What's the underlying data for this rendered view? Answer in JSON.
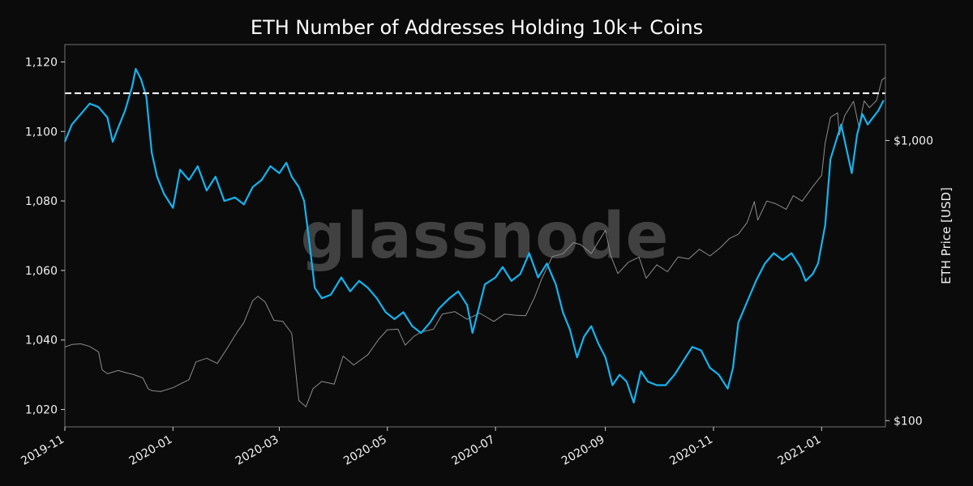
{
  "chart_data": {
    "type": "line",
    "title": "ETH Number of Addresses Holding 10k+ Coins",
    "watermark": "glassnode",
    "xlabel": "",
    "ylabel_left": "",
    "ylabel_right": "ETH Price [USD]",
    "x_range": [
      "2019-11-01",
      "2021-02-06"
    ],
    "x_ticks": [
      "2019-11",
      "2020-01",
      "2020-03",
      "2020-05",
      "2020-07",
      "2020-09",
      "2020-11",
      "2021-01"
    ],
    "y_left_range": [
      1015,
      1125
    ],
    "y_left_ticks": [
      "1,020",
      "1,040",
      "1,060",
      "1,080",
      "1,100",
      "1,120"
    ],
    "y_right_scale": "log",
    "y_right_range": [
      95,
      2200
    ],
    "y_right_ticks": [
      {
        "value": 100,
        "label": "$100"
      },
      {
        "value": 1000,
        "label": "$1,000"
      }
    ],
    "reference_line": {
      "y": 1111,
      "style": "dashed",
      "color": "#ffffff"
    },
    "grid": false,
    "series": [
      {
        "key": "addresses",
        "axis": "left",
        "color": "#14b4f0",
        "points": [
          [
            "2019-11-01",
            1097
          ],
          [
            "2019-11-05",
            1102
          ],
          [
            "2019-11-10",
            1105
          ],
          [
            "2019-11-15",
            1108
          ],
          [
            "2019-11-20",
            1107
          ],
          [
            "2019-11-25",
            1104
          ],
          [
            "2019-11-28",
            1097
          ],
          [
            "2019-12-01",
            1101
          ],
          [
            "2019-12-05",
            1106
          ],
          [
            "2019-12-09",
            1113
          ],
          [
            "2019-12-11",
            1118
          ],
          [
            "2019-12-14",
            1115
          ],
          [
            "2019-12-17",
            1110
          ],
          [
            "2019-12-20",
            1094
          ],
          [
            "2019-12-23",
            1087
          ],
          [
            "2019-12-27",
            1082
          ],
          [
            "2020-01-01",
            1078
          ],
          [
            "2020-01-05",
            1089
          ],
          [
            "2020-01-10",
            1086
          ],
          [
            "2020-01-15",
            1090
          ],
          [
            "2020-01-20",
            1083
          ],
          [
            "2020-01-25",
            1087
          ],
          [
            "2020-01-30",
            1080
          ],
          [
            "2020-02-05",
            1081
          ],
          [
            "2020-02-10",
            1079
          ],
          [
            "2020-02-15",
            1084
          ],
          [
            "2020-02-20",
            1086
          ],
          [
            "2020-02-25",
            1090
          ],
          [
            "2020-03-01",
            1088
          ],
          [
            "2020-03-05",
            1091
          ],
          [
            "2020-03-08",
            1087
          ],
          [
            "2020-03-12",
            1084
          ],
          [
            "2020-03-15",
            1080
          ],
          [
            "2020-03-18",
            1068
          ],
          [
            "2020-03-21",
            1055
          ],
          [
            "2020-03-25",
            1052
          ],
          [
            "2020-03-30",
            1053
          ],
          [
            "2020-04-05",
            1058
          ],
          [
            "2020-04-10",
            1054
          ],
          [
            "2020-04-15",
            1057
          ],
          [
            "2020-04-20",
            1055
          ],
          [
            "2020-04-25",
            1052
          ],
          [
            "2020-04-30",
            1048
          ],
          [
            "2020-05-05",
            1046
          ],
          [
            "2020-05-10",
            1048
          ],
          [
            "2020-05-15",
            1044
          ],
          [
            "2020-05-20",
            1042
          ],
          [
            "2020-05-25",
            1045
          ],
          [
            "2020-05-30",
            1049
          ],
          [
            "2020-06-05",
            1052
          ],
          [
            "2020-06-10",
            1054
          ],
          [
            "2020-06-15",
            1050
          ],
          [
            "2020-06-18",
            1042
          ],
          [
            "2020-06-21",
            1048
          ],
          [
            "2020-06-25",
            1056
          ],
          [
            "2020-07-01",
            1058
          ],
          [
            "2020-07-05",
            1061
          ],
          [
            "2020-07-10",
            1057
          ],
          [
            "2020-07-15",
            1059
          ],
          [
            "2020-07-20",
            1065
          ],
          [
            "2020-07-25",
            1058
          ],
          [
            "2020-07-30",
            1062
          ],
          [
            "2020-08-04",
            1056
          ],
          [
            "2020-08-08",
            1048
          ],
          [
            "2020-08-12",
            1043
          ],
          [
            "2020-08-16",
            1035
          ],
          [
            "2020-08-20",
            1041
          ],
          [
            "2020-08-24",
            1044
          ],
          [
            "2020-08-28",
            1039
          ],
          [
            "2020-09-01",
            1035
          ],
          [
            "2020-09-05",
            1027
          ],
          [
            "2020-09-09",
            1030
          ],
          [
            "2020-09-13",
            1028
          ],
          [
            "2020-09-17",
            1022
          ],
          [
            "2020-09-21",
            1031
          ],
          [
            "2020-09-25",
            1028
          ],
          [
            "2020-09-30",
            1027
          ],
          [
            "2020-10-05",
            1027
          ],
          [
            "2020-10-10",
            1030
          ],
          [
            "2020-10-15",
            1034
          ],
          [
            "2020-10-20",
            1038
          ],
          [
            "2020-10-25",
            1037
          ],
          [
            "2020-10-30",
            1032
          ],
          [
            "2020-11-04",
            1030
          ],
          [
            "2020-11-09",
            1026
          ],
          [
            "2020-11-12",
            1032
          ],
          [
            "2020-11-15",
            1045
          ],
          [
            "2020-11-20",
            1051
          ],
          [
            "2020-11-25",
            1057
          ],
          [
            "2020-11-30",
            1062
          ],
          [
            "2020-12-05",
            1065
          ],
          [
            "2020-12-10",
            1063
          ],
          [
            "2020-12-15",
            1065
          ],
          [
            "2020-12-20",
            1061
          ],
          [
            "2020-12-23",
            1057
          ],
          [
            "2020-12-27",
            1059
          ],
          [
            "2020-12-30",
            1062
          ],
          [
            "2021-01-03",
            1073
          ],
          [
            "2021-01-06",
            1092
          ],
          [
            "2021-01-09",
            1097
          ],
          [
            "2021-01-12",
            1102
          ],
          [
            "2021-01-15",
            1095
          ],
          [
            "2021-01-18",
            1088
          ],
          [
            "2021-01-21",
            1099
          ],
          [
            "2021-01-24",
            1105
          ],
          [
            "2021-01-27",
            1102
          ],
          [
            "2021-01-30",
            1104
          ],
          [
            "2021-02-02",
            1106
          ],
          [
            "2021-02-05",
            1109
          ]
        ]
      },
      {
        "key": "price",
        "axis": "right",
        "color": "#8c8c8c",
        "points": [
          [
            "2019-11-01",
            183
          ],
          [
            "2019-11-05",
            187
          ],
          [
            "2019-11-10",
            188
          ],
          [
            "2019-11-15",
            184
          ],
          [
            "2019-11-20",
            176
          ],
          [
            "2019-11-22",
            152
          ],
          [
            "2019-11-25",
            147
          ],
          [
            "2019-12-01",
            151
          ],
          [
            "2019-12-06",
            148
          ],
          [
            "2019-12-10",
            146
          ],
          [
            "2019-12-15",
            142
          ],
          [
            "2019-12-18",
            130
          ],
          [
            "2019-12-20",
            128
          ],
          [
            "2019-12-25",
            127
          ],
          [
            "2020-01-01",
            131
          ],
          [
            "2020-01-06",
            136
          ],
          [
            "2020-01-10",
            140
          ],
          [
            "2020-01-14",
            162
          ],
          [
            "2020-01-20",
            167
          ],
          [
            "2020-01-26",
            160
          ],
          [
            "2020-02-01",
            183
          ],
          [
            "2020-02-06",
            206
          ],
          [
            "2020-02-10",
            224
          ],
          [
            "2020-02-15",
            268
          ],
          [
            "2020-02-18",
            278
          ],
          [
            "2020-02-22",
            265
          ],
          [
            "2020-02-27",
            228
          ],
          [
            "2020-03-03",
            226
          ],
          [
            "2020-03-08",
            205
          ],
          [
            "2020-03-12",
            118
          ],
          [
            "2020-03-16",
            112
          ],
          [
            "2020-03-20",
            130
          ],
          [
            "2020-03-25",
            138
          ],
          [
            "2020-04-01",
            135
          ],
          [
            "2020-04-06",
            170
          ],
          [
            "2020-04-12",
            158
          ],
          [
            "2020-04-20",
            172
          ],
          [
            "2020-04-26",
            195
          ],
          [
            "2020-05-01",
            211
          ],
          [
            "2020-05-07",
            212
          ],
          [
            "2020-05-11",
            186
          ],
          [
            "2020-05-16",
            200
          ],
          [
            "2020-05-20",
            207
          ],
          [
            "2020-05-27",
            212
          ],
          [
            "2020-06-01",
            240
          ],
          [
            "2020-06-08",
            245
          ],
          [
            "2020-06-15",
            230
          ],
          [
            "2020-06-22",
            242
          ],
          [
            "2020-06-30",
            226
          ],
          [
            "2020-07-06",
            240
          ],
          [
            "2020-07-12",
            238
          ],
          [
            "2020-07-18",
            237
          ],
          [
            "2020-07-23",
            275
          ],
          [
            "2020-07-27",
            320
          ],
          [
            "2020-08-02",
            385
          ],
          [
            "2020-08-08",
            394
          ],
          [
            "2020-08-14",
            432
          ],
          [
            "2020-08-18",
            425
          ],
          [
            "2020-08-24",
            395
          ],
          [
            "2020-09-01",
            478
          ],
          [
            "2020-09-04",
            388
          ],
          [
            "2020-09-08",
            335
          ],
          [
            "2020-09-14",
            368
          ],
          [
            "2020-09-20",
            383
          ],
          [
            "2020-09-24",
            322
          ],
          [
            "2020-09-30",
            360
          ],
          [
            "2020-10-06",
            340
          ],
          [
            "2020-10-12",
            384
          ],
          [
            "2020-10-18",
            378
          ],
          [
            "2020-10-24",
            409
          ],
          [
            "2020-10-30",
            387
          ],
          [
            "2020-11-05",
            415
          ],
          [
            "2020-11-10",
            447
          ],
          [
            "2020-11-15",
            463
          ],
          [
            "2020-11-20",
            510
          ],
          [
            "2020-11-24",
            605
          ],
          [
            "2020-11-26",
            520
          ],
          [
            "2020-12-01",
            608
          ],
          [
            "2020-12-06",
            595
          ],
          [
            "2020-12-12",
            568
          ],
          [
            "2020-12-16",
            635
          ],
          [
            "2020-12-21",
            607
          ],
          [
            "2020-12-27",
            685
          ],
          [
            "2021-01-01",
            750
          ],
          [
            "2021-01-03",
            980
          ],
          [
            "2021-01-06",
            1210
          ],
          [
            "2021-01-10",
            1255
          ],
          [
            "2021-01-11",
            1045
          ],
          [
            "2021-01-14",
            1225
          ],
          [
            "2021-01-19",
            1380
          ],
          [
            "2021-01-22",
            1120
          ],
          [
            "2021-01-25",
            1385
          ],
          [
            "2021-01-28",
            1310
          ],
          [
            "2021-02-01",
            1390
          ],
          [
            "2021-02-04",
            1645
          ],
          [
            "2021-02-06",
            1680
          ]
        ]
      }
    ]
  }
}
